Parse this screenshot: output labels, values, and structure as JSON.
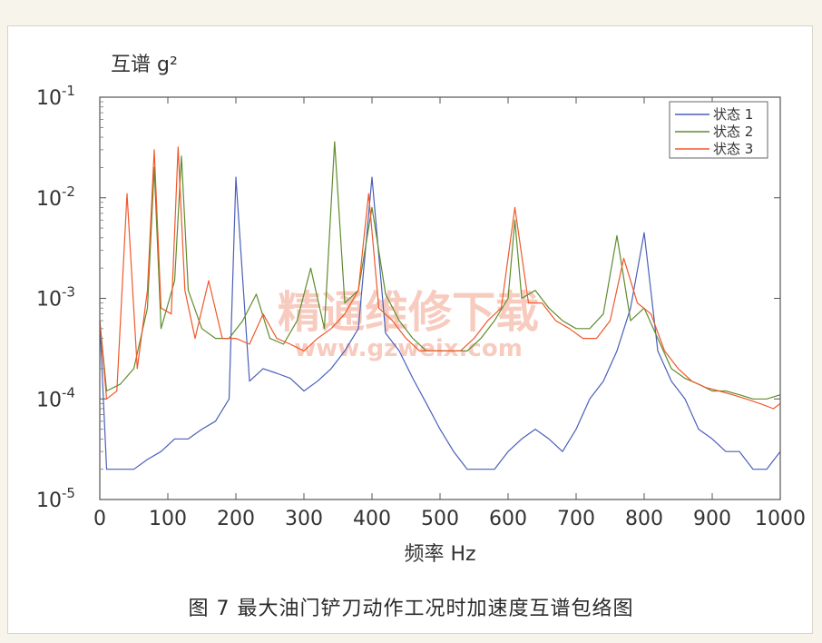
{
  "caption": "图 7   最大油门铲刀动作工况时加速度互谱包络图",
  "watermark": {
    "line1": "精通维修下载",
    "line2": "www.gzweix.com"
  },
  "colors": {
    "状态 1": "#4a5fb8",
    "状态 2": "#5f8c2e",
    "状态 3": "#f0582a"
  },
  "chart_data": {
    "type": "line",
    "ylabel": "互谱  g²",
    "xlabel": "频率 Hz",
    "xlim": [
      0,
      1000
    ],
    "ylim": [
      1e-05,
      0.1
    ],
    "yscale": "log",
    "grid": false,
    "legend_position": "top-right",
    "xticks": [
      0,
      100,
      200,
      300,
      400,
      500,
      600,
      700,
      800,
      900,
      1000
    ],
    "yticks": [
      {
        "value": 1e-05,
        "base": "10",
        "exp": "-5"
      },
      {
        "value": 0.0001,
        "base": "10",
        "exp": "-4"
      },
      {
        "value": 0.001,
        "base": "10",
        "exp": "-3"
      },
      {
        "value": 0.01,
        "base": "10",
        "exp": "-2"
      },
      {
        "value": 0.1,
        "base": "10",
        "exp": "-1"
      }
    ],
    "series": [
      {
        "name": "状态 1",
        "color": "#4a5fb8",
        "x": [
          0,
          10,
          30,
          50,
          70,
          90,
          110,
          130,
          150,
          170,
          190,
          200,
          220,
          240,
          260,
          280,
          300,
          320,
          340,
          360,
          380,
          400,
          420,
          440,
          460,
          480,
          500,
          520,
          540,
          560,
          580,
          600,
          620,
          640,
          660,
          680,
          700,
          720,
          740,
          760,
          780,
          800,
          820,
          840,
          860,
          880,
          900,
          920,
          940,
          960,
          980,
          1000
        ],
        "values": [
          0.0006,
          2e-05,
          2e-05,
          2e-05,
          2.5e-05,
          3e-05,
          4e-05,
          4e-05,
          5e-05,
          6e-05,
          0.0001,
          0.016,
          0.00015,
          0.0002,
          0.00018,
          0.00016,
          0.00012,
          0.00015,
          0.0002,
          0.0003,
          0.0005,
          0.016,
          0.00045,
          0.0003,
          0.00016,
          9e-05,
          5e-05,
          3e-05,
          2e-05,
          2e-05,
          2e-05,
          3e-05,
          4e-05,
          5e-05,
          4e-05,
          3e-05,
          5e-05,
          0.0001,
          0.00015,
          0.0003,
          0.0008,
          0.0045,
          0.0003,
          0.00015,
          0.0001,
          5e-05,
          4e-05,
          3e-05,
          3e-05,
          2e-05,
          2e-05,
          3e-05
        ]
      },
      {
        "name": "状态 2",
        "color": "#5f8c2e",
        "x": [
          0,
          10,
          30,
          50,
          70,
          80,
          90,
          110,
          120,
          130,
          150,
          170,
          190,
          210,
          230,
          250,
          270,
          290,
          310,
          330,
          345,
          360,
          380,
          400,
          420,
          440,
          460,
          480,
          500,
          520,
          540,
          560,
          580,
          600,
          610,
          620,
          640,
          660,
          680,
          700,
          720,
          740,
          760,
          780,
          800,
          820,
          840,
          860,
          880,
          900,
          920,
          940,
          960,
          980,
          1000
        ],
        "values": [
          0.0006,
          0.00012,
          0.00014,
          0.0002,
          0.0008,
          0.02,
          0.0005,
          0.0015,
          0.026,
          0.0012,
          0.0005,
          0.0004,
          0.0004,
          0.0006,
          0.0011,
          0.0004,
          0.00035,
          0.0006,
          0.002,
          0.0005,
          0.036,
          0.0009,
          0.0012,
          0.008,
          0.0011,
          0.0006,
          0.0004,
          0.0003,
          0.0003,
          0.0003,
          0.0003,
          0.0004,
          0.0006,
          0.001,
          0.006,
          0.001,
          0.0012,
          0.0008,
          0.0006,
          0.0005,
          0.0005,
          0.0007,
          0.0042,
          0.0006,
          0.0008,
          0.0004,
          0.0002,
          0.00016,
          0.00014,
          0.00012,
          0.00012,
          0.00011,
          0.0001,
          0.0001,
          0.00011
        ]
      },
      {
        "name": "状态 3",
        "color": "#f0582a",
        "x": [
          0,
          10,
          25,
          40,
          55,
          70,
          80,
          90,
          105,
          115,
          125,
          140,
          160,
          180,
          200,
          220,
          240,
          260,
          280,
          300,
          320,
          340,
          360,
          380,
          395,
          410,
          430,
          450,
          470,
          490,
          510,
          530,
          550,
          570,
          590,
          610,
          630,
          650,
          670,
          690,
          710,
          730,
          750,
          770,
          790,
          810,
          830,
          850,
          870,
          890,
          910,
          930,
          950,
          970,
          990,
          1000
        ],
        "values": [
          0.0006,
          0.0001,
          0.00012,
          0.011,
          0.0002,
          0.0012,
          0.03,
          0.0008,
          0.0007,
          0.032,
          0.0012,
          0.0004,
          0.0015,
          0.0004,
          0.0004,
          0.00035,
          0.0007,
          0.0004,
          0.00035,
          0.0003,
          0.0004,
          0.0005,
          0.0007,
          0.0012,
          0.011,
          0.0008,
          0.0006,
          0.0004,
          0.0003,
          0.0003,
          0.0003,
          0.0003,
          0.0004,
          0.0006,
          0.0008,
          0.008,
          0.0009,
          0.0009,
          0.0006,
          0.0005,
          0.0004,
          0.0004,
          0.0006,
          0.0025,
          0.0009,
          0.0007,
          0.0003,
          0.0002,
          0.00015,
          0.00013,
          0.00012,
          0.00011,
          0.0001,
          9e-05,
          8e-05,
          9e-05
        ]
      }
    ]
  }
}
